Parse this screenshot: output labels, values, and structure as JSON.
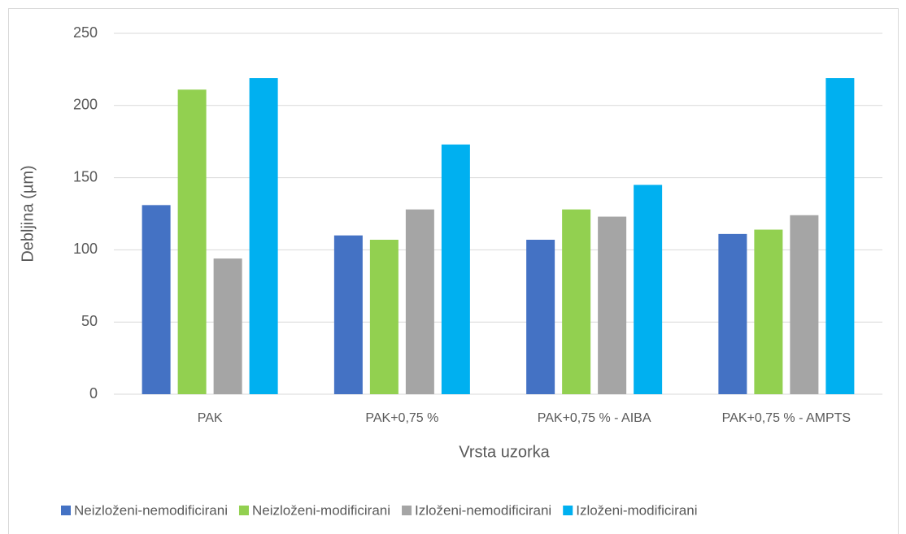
{
  "chart_data": {
    "type": "bar",
    "x_label": "Vrsta uzorka",
    "y_label": "Debljina (µm)",
    "categories": [
      "PAK",
      "PAK+0,75 %",
      "PAK+0,75 % - AIBA",
      "PAK+0,75 % - AMPTS"
    ],
    "series": [
      {
        "name": "Neizloženi-nemodificirani",
        "color": "#4472c4",
        "values": [
          131,
          110,
          107,
          111
        ]
      },
      {
        "name": "Neizloženi-modificirani",
        "color": "#92d050",
        "values": [
          211,
          107,
          128,
          114
        ]
      },
      {
        "name": "Izloženi-nemodificirani",
        "color": "#a5a5a5",
        "values": [
          94,
          128,
          123,
          124
        ]
      },
      {
        "name": "Izloženi-modificirani",
        "color": "#00b0f0",
        "values": [
          219,
          173,
          145,
          219
        ]
      }
    ],
    "ylim": [
      0,
      250
    ],
    "yticks": [
      0,
      50,
      100,
      150,
      200,
      250
    ],
    "grid": true,
    "legend": "bottom"
  }
}
